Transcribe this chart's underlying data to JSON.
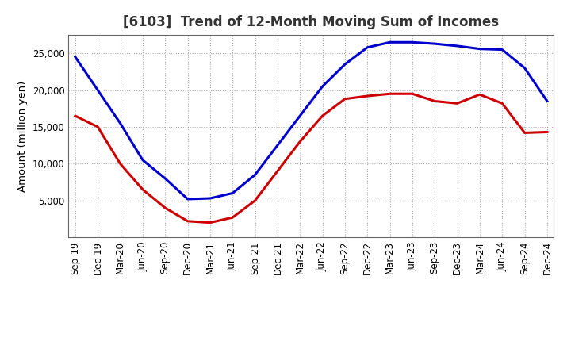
{
  "title": "[6103]  Trend of 12-Month Moving Sum of Incomes",
  "ylabel": "Amount (million yen)",
  "background_color": "#ffffff",
  "grid_color": "#aaaaaa",
  "xlabels": [
    "Sep-19",
    "Dec-19",
    "Mar-20",
    "Jun-20",
    "Sep-20",
    "Dec-20",
    "Mar-21",
    "Jun-21",
    "Sep-21",
    "Dec-21",
    "Mar-22",
    "Jun-22",
    "Sep-22",
    "Dec-22",
    "Mar-23",
    "Jun-23",
    "Sep-23",
    "Dec-23",
    "Mar-24",
    "Jun-24",
    "Sep-24",
    "Dec-24"
  ],
  "ordinary_income": [
    24500,
    20000,
    15500,
    10500,
    8000,
    5200,
    5300,
    6000,
    8500,
    12500,
    16500,
    20500,
    23500,
    25800,
    26500,
    26500,
    26300,
    26000,
    25600,
    25500,
    23000,
    18500
  ],
  "net_income": [
    16500,
    15000,
    10000,
    6500,
    4000,
    2200,
    2000,
    2700,
    5000,
    9000,
    13000,
    16500,
    18800,
    19200,
    19500,
    19500,
    18500,
    18200,
    19400,
    18200,
    14200,
    14300
  ],
  "ordinary_color": "#0000cc",
  "net_color": "#cc0000",
  "ylim": [
    0,
    27500
  ],
  "yticks": [
    5000,
    10000,
    15000,
    20000,
    25000
  ],
  "line_width": 2.2,
  "title_fontsize": 12,
  "legend_fontsize": 10,
  "tick_fontsize": 8.5,
  "ylabel_fontsize": 9.5
}
